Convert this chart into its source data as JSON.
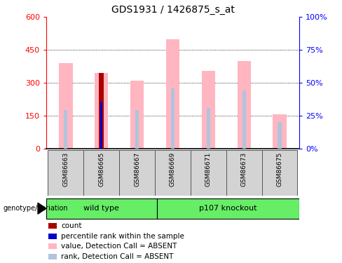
{
  "title": "GDS1931 / 1426875_s_at",
  "samples": [
    "GSM86663",
    "GSM86665",
    "GSM86667",
    "GSM86669",
    "GSM86671",
    "GSM86673",
    "GSM86675"
  ],
  "value_pink": [
    390,
    345,
    310,
    500,
    355,
    400,
    155
  ],
  "rank_blue_light": [
    175,
    215,
    175,
    275,
    185,
    265,
    120
  ],
  "count_red": [
    0,
    345,
    0,
    0,
    0,
    0,
    0
  ],
  "percentile_blue_dark": [
    0,
    215,
    0,
    0,
    0,
    0,
    0
  ],
  "ylim_left": [
    0,
    600
  ],
  "ylim_right": [
    0,
    100
  ],
  "yticks_left": [
    0,
    150,
    300,
    450,
    600
  ],
  "yticks_right": [
    0,
    25,
    50,
    75,
    100
  ],
  "yticklabels_left": [
    "0",
    "150",
    "300",
    "450",
    "600"
  ],
  "yticklabels_right": [
    "0%",
    "25%",
    "50%",
    "75%",
    "100%"
  ],
  "color_count": "#aa0000",
  "color_percentile": "#0000cc",
  "color_value_absent": "#ffb6c1",
  "color_rank_absent": "#b0c4de",
  "background_color": "#ffffff",
  "legend_labels": [
    "count",
    "percentile rank within the sample",
    "value, Detection Call = ABSENT",
    "rank, Detection Call = ABSENT"
  ],
  "legend_colors": [
    "#aa0000",
    "#0000cc",
    "#ffb6c1",
    "#b0c4de"
  ],
  "wt_samples": [
    0,
    1,
    2
  ],
  "ko_samples": [
    3,
    4,
    5,
    6
  ],
  "group_color": "#66ee66"
}
